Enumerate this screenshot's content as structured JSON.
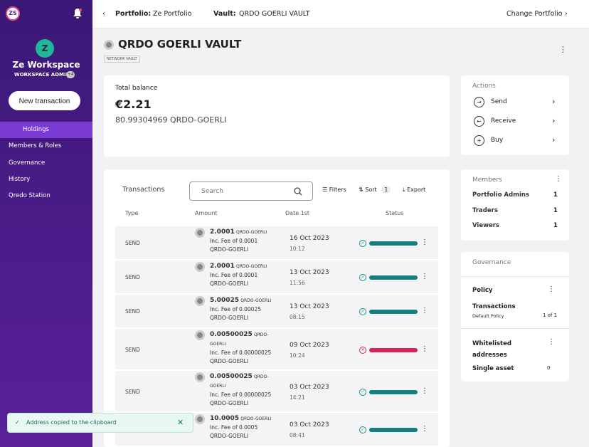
{
  "sidebar": {
    "avatar": "ZS",
    "workspace": "Ze Workspace",
    "role": "WORKSPACE ADMIN",
    "badge": "+4",
    "new_transaction": "New transaction",
    "nav": [
      "Holdings",
      "Members & Roles",
      "Governance",
      "History",
      "Qredo Station"
    ],
    "active": 0
  },
  "topbar": {
    "portfolio_label": "Portfolio:",
    "portfolio": "Ze Portfolio",
    "vault_label": "Vault:",
    "vault": "QRDO GOERLI VAULT",
    "change": "Change Portfolio"
  },
  "header": {
    "title": "QRDO GOERLI VAULT",
    "tag": "NETWORK VAULT"
  },
  "balance": {
    "label": "Total balance",
    "amount": "€2.21",
    "sub": "80.99304969 QRDO-GOERLI"
  },
  "actions": {
    "title": "Actions",
    "items": [
      "Send",
      "Receive",
      "Buy"
    ]
  },
  "members": {
    "title": "Members",
    "rows": [
      [
        "Portfolio Admins",
        1
      ],
      [
        "Traders",
        1
      ],
      [
        "Viewers",
        1
      ]
    ]
  },
  "governance": {
    "title": "Governance",
    "policy": "Policy",
    "transactions": "Transactions",
    "default_policy": "Default Policy",
    "count": "1 of 1",
    "whitelisted": "Whitelisted addresses",
    "single_asset": "Single asset",
    "single_count": 0
  },
  "transactions": {
    "title": "Transactions",
    "search": "Search",
    "filters": "Filters",
    "sort": "Sort",
    "sort_count": 1,
    "export": "Export",
    "columns": [
      "Type",
      "Amount",
      "Date 1st",
      "Status"
    ],
    "rows": [
      {
        "type": "SEND",
        "amount": "2.0001",
        "unit": "QRDO-GOERLI",
        "fee": "Inc. Fee of 0.0001 QRDO-GOERLI",
        "date": "16 Oct 2023",
        "time": "10:12",
        "status": "success"
      },
      {
        "type": "SEND",
        "amount": "2.0001",
        "unit": "QRDO-GOERLI",
        "fee": "Inc. Fee of 0.0001 QRDO-GOERLI",
        "date": "13 Oct 2023",
        "time": "11:56",
        "status": "success"
      },
      {
        "type": "SEND",
        "amount": "5.00025",
        "unit": "QRDO-GOERLI",
        "fee": "Inc. Fee of 0.00025 QRDO-GOERLI",
        "date": "13 Oct 2023",
        "time": "08:15",
        "status": "success"
      },
      {
        "type": "SEND",
        "amount": "0.00500025",
        "unit": "QRDO-GOERLI",
        "fee": "Inc. Fee of 0.00000025 QRDO-GOERLI",
        "date": "09 Oct 2023",
        "time": "10:24",
        "status": "failed"
      },
      {
        "type": "SEND",
        "amount": "0.00500025",
        "unit": "QRDO-GOERLI",
        "fee": "Inc. Fee of 0.00000025 QRDO-GOERLI",
        "date": "03 Oct 2023",
        "time": "14:21",
        "status": "success"
      },
      {
        "type": "SEND",
        "amount": "10.0005",
        "unit": "QRDO-GOERLI",
        "fee": "Inc. Fee of 0.0005 QRDO-GOERLI",
        "date": "03 Oct 2023",
        "time": "08:41",
        "status": "success"
      }
    ]
  },
  "toast": {
    "message": "Address copied to the clipboard"
  }
}
